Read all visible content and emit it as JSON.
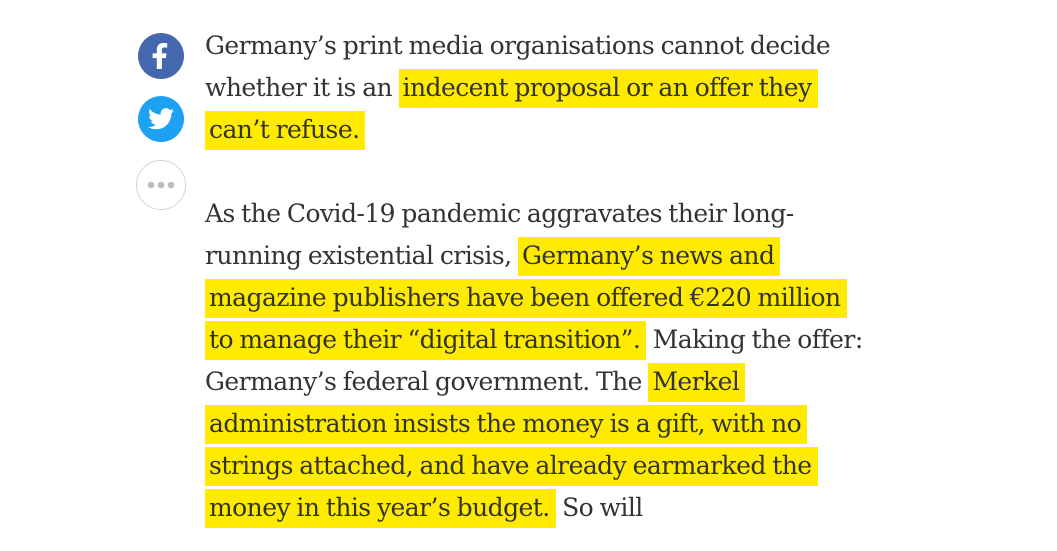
{
  "share": {
    "facebook_icon": "facebook-icon",
    "twitter_icon": "twitter-icon",
    "more_icon": "more-dots-icon",
    "colors": {
      "facebook": "#4467ad",
      "twitter": "#1da1f2",
      "highlight": "#ffeb00"
    }
  },
  "article": {
    "paragraph1": {
      "before": "Germany’s print media organisations cannot decide whether it is an",
      "highlight": "indecent proposal or an offer they can’t refuse."
    },
    "paragraph2": {
      "text1": "As the Covid-19 pandemic aggravates their long-running existential crisis,",
      "highlight1": "Germany’s news and magazine publishers have been offered €220 million to manage their “digital transition”.",
      "text2": "Making the offer: Germany’s federal government. The",
      "highlight2": "Merkel administration insists the money is a gift, with no strings attached, and have already earmarked the money in this year’s budget.",
      "text3": "So will"
    }
  }
}
